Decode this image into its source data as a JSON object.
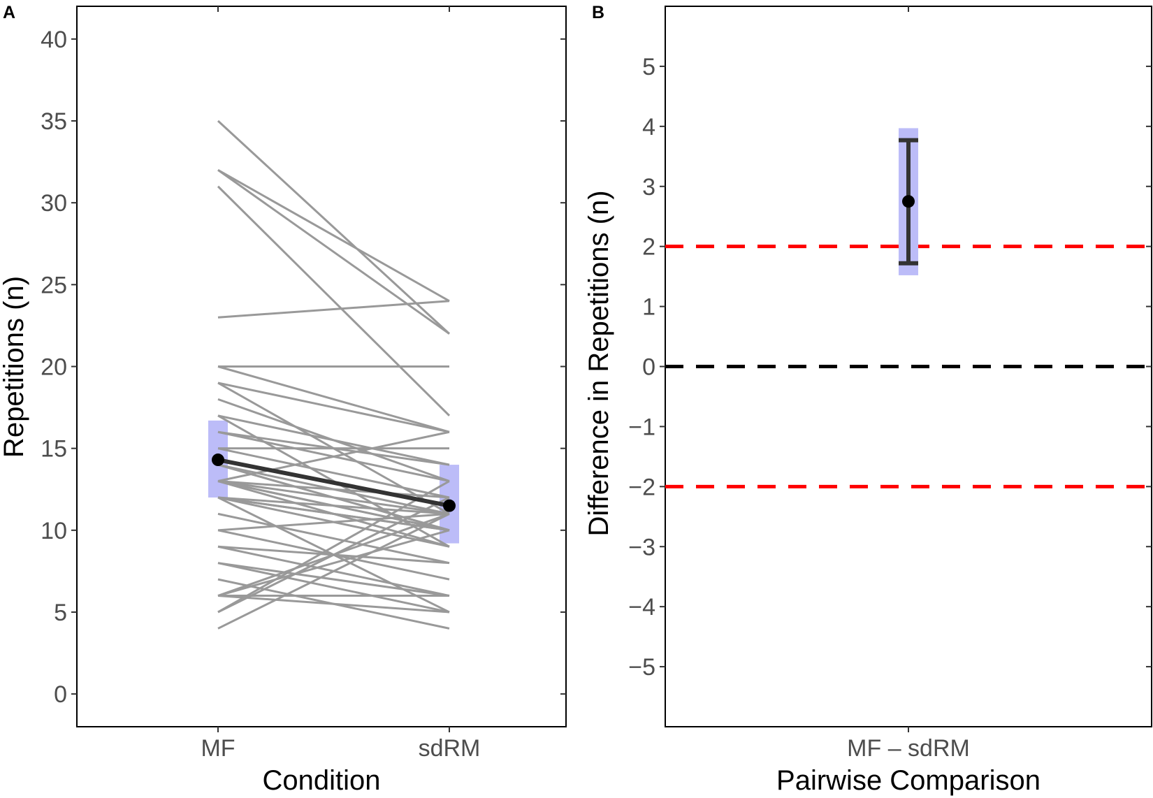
{
  "chart_data": [
    {
      "panel_label": "A",
      "type": "line",
      "xlabel": "Condition",
      "ylabel": "Repetitions (n)",
      "categories": [
        "MF",
        "sdRM"
      ],
      "ylim": [
        -2,
        42
      ],
      "yticks": [
        0,
        5,
        10,
        15,
        20,
        25,
        30,
        35,
        40
      ],
      "grid": false,
      "individual_lines": [
        [
          32,
          22
        ],
        [
          32,
          24
        ],
        [
          31,
          17
        ],
        [
          35,
          22
        ],
        [
          23,
          24
        ],
        [
          20,
          20
        ],
        [
          20,
          16
        ],
        [
          19,
          16
        ],
        [
          19,
          11
        ],
        [
          18,
          13
        ],
        [
          17,
          14
        ],
        [
          17,
          9
        ],
        [
          16,
          14
        ],
        [
          16,
          13
        ],
        [
          15,
          12
        ],
        [
          15,
          15
        ],
        [
          14,
          11
        ],
        [
          14,
          10
        ],
        [
          14,
          10
        ],
        [
          13,
          10
        ],
        [
          13,
          11
        ],
        [
          13,
          12
        ],
        [
          13,
          10
        ],
        [
          13,
          9
        ],
        [
          13,
          16
        ],
        [
          12,
          10
        ],
        [
          12,
          11
        ],
        [
          12,
          10
        ],
        [
          12,
          9
        ],
        [
          12,
          5
        ],
        [
          11,
          8
        ],
        [
          10,
          11
        ],
        [
          10,
          7
        ],
        [
          9,
          6
        ],
        [
          9,
          8
        ],
        [
          8,
          6
        ],
        [
          8,
          5
        ],
        [
          7,
          4
        ],
        [
          6,
          11
        ],
        [
          6,
          6
        ],
        [
          6,
          10
        ],
        [
          6,
          5
        ],
        [
          5,
          13
        ],
        [
          5,
          12
        ],
        [
          4,
          11
        ]
      ],
      "mean": [
        14.3,
        11.5
      ],
      "ci": [
        [
          12.0,
          16.7
        ],
        [
          9.2,
          14.0
        ]
      ],
      "colors": {
        "individual": "#999999",
        "mean": "#333333",
        "ci": "#bcbcf8"
      }
    },
    {
      "panel_label": "B",
      "type": "scatter",
      "xlabel": "Pairwise Comparison",
      "ylabel": "Difference in Repetitions (n)",
      "categories": [
        "MF – sdRM"
      ],
      "ylim": [
        -6,
        6
      ],
      "yticks": [
        -5,
        -4,
        -3,
        -2,
        -1,
        0,
        1,
        2,
        3,
        4,
        5
      ],
      "ytick_labels": [
        "−5",
        "−4",
        "−3",
        "−2",
        "−1",
        "0",
        "1",
        "2",
        "3",
        "4",
        "5"
      ],
      "grid": false,
      "estimate": 2.75,
      "error_bar": [
        1.72,
        3.77
      ],
      "ci_band": [
        1.52,
        3.97
      ],
      "reference_lines": [
        {
          "y": 2,
          "color": "#ff0000",
          "style": "dashed"
        },
        {
          "y": 0,
          "color": "#000000",
          "style": "dashed"
        },
        {
          "y": -2,
          "color": "#ff0000",
          "style": "dashed"
        }
      ],
      "colors": {
        "point": "#000000",
        "errorbar": "#333333",
        "ci": "#bcbcf8"
      }
    }
  ]
}
